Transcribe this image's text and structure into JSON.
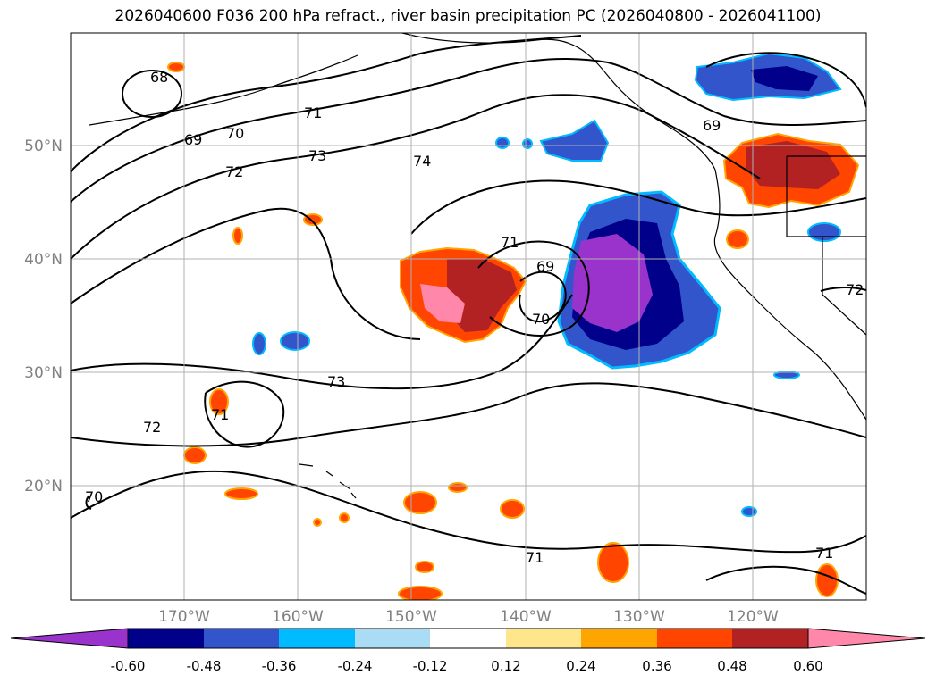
{
  "title": "2026040600 F036 200 hPa refract., river basin precipitation PC (2026040800 - 2026041100)",
  "map": {
    "lon_labels": [
      "170°W",
      "160°W",
      "150°W",
      "140°W",
      "130°W",
      "120°W"
    ],
    "lat_labels": [
      "50°N",
      "40°N",
      "30°N",
      "20°N"
    ],
    "contour_labels": [
      "68",
      "69",
      "70",
      "71",
      "72",
      "73",
      "74",
      "69",
      "71",
      "70",
      "73",
      "72",
      "71",
      "70",
      "71",
      "69",
      "72",
      "71"
    ]
  },
  "colorbar": {
    "tick_labels": [
      "-0.60",
      "-0.48",
      "-0.36",
      "-0.24",
      "-0.12",
      "0.12",
      "0.24",
      "0.36",
      "0.48",
      "0.60"
    ],
    "colors": [
      "#9933cc",
      "#00008b",
      "#3355cc",
      "#00bbff",
      "#aaddf5",
      "#ffffff",
      "#ffe68a",
      "#ffa500",
      "#ff4500",
      "#b22222",
      "#ff88aa",
      "#ff88aa"
    ]
  }
}
